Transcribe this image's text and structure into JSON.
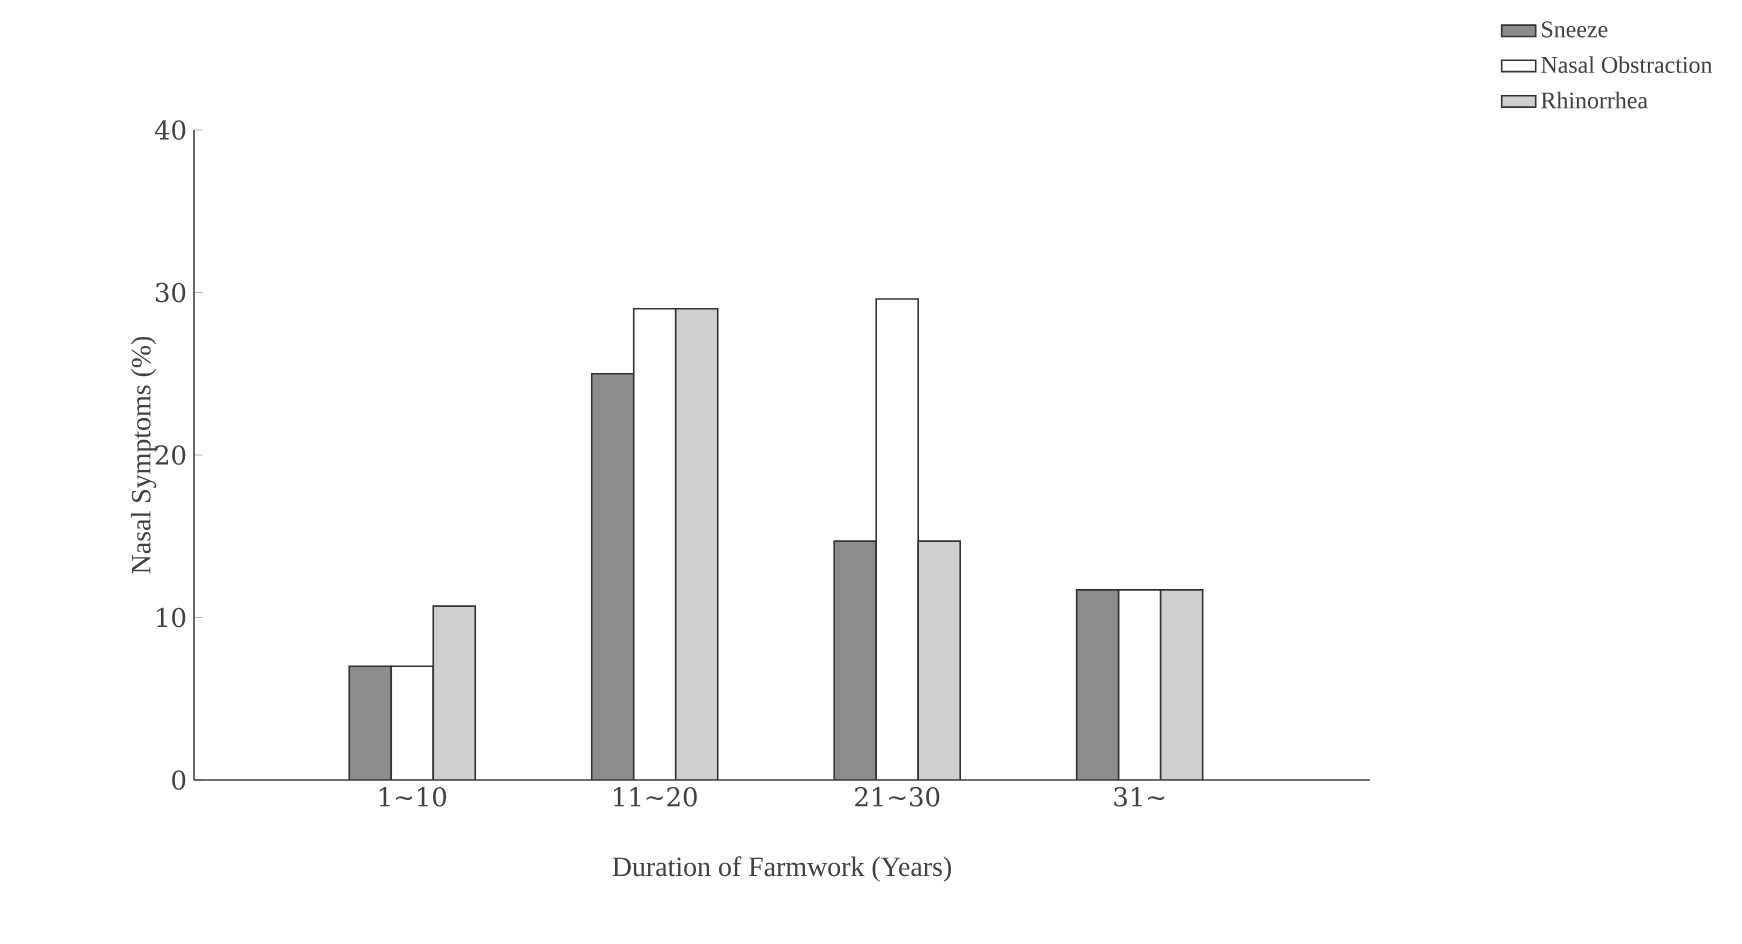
{
  "chart_data": {
    "type": "bar",
    "xlabel": "Duration of Farmwork (Years)",
    "ylabel": "Nasal Symptoms (%)",
    "categories": [
      "1∼10",
      "11∼20",
      "21∼30",
      "31∼"
    ],
    "series": [
      {
        "name": "Sneeze",
        "color": "#8c8c8c",
        "values": [
          7,
          25,
          14.7,
          11.7
        ]
      },
      {
        "name": "Nasal Obstraction",
        "color": "#ffffff",
        "values": [
          7,
          29,
          29.6,
          11.7
        ]
      },
      {
        "name": "Rhinorrhea",
        "color": "#cfcfcf",
        "values": [
          10.7,
          29,
          14.7,
          11.7
        ]
      }
    ],
    "ylim": [
      0,
      40
    ],
    "yticks": [
      0,
      10,
      20,
      30,
      40
    ],
    "legend": "top right"
  }
}
